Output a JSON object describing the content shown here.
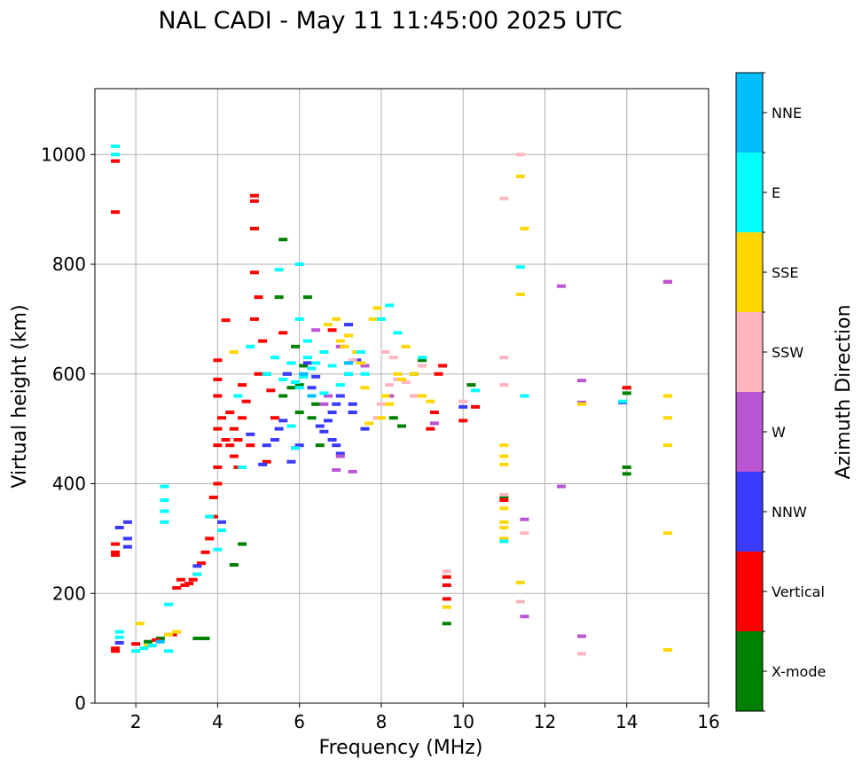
{
  "chart_data": {
    "type": "scatter",
    "title": "NAL CADI - May 11 11:45:00 2025 UTC",
    "xlabel": "Frequency (MHz)",
    "ylabel": "Virtual height (km)",
    "xlim": [
      1,
      16
    ],
    "ylim": [
      0,
      1120
    ],
    "xticks": [
      2,
      4,
      6,
      8,
      10,
      12,
      14,
      16
    ],
    "yticks": [
      0,
      200,
      400,
      600,
      800,
      1000
    ],
    "grid": true,
    "colorbar": {
      "label": "Azimuth Direction",
      "categories": [
        "X-mode",
        "Vertical",
        "NNW",
        "W",
        "SSW",
        "SSE",
        "E",
        "NNE"
      ],
      "colors": [
        "#008000",
        "#ff0000",
        "#3a3aff",
        "#ba55d3",
        "#ffb6c1",
        "#ffd700",
        "#00ffff",
        "#00bfff"
      ]
    },
    "series": [
      {
        "name": "X-mode",
        "points": [
          [
            2.3,
            112
          ],
          [
            2.6,
            118
          ],
          [
            3.5,
            118
          ],
          [
            3.7,
            118
          ],
          [
            4.4,
            252
          ],
          [
            4.6,
            290
          ],
          [
            5.6,
            560
          ],
          [
            5.7,
            600
          ],
          [
            5.8,
            575
          ],
          [
            6.0,
            580
          ],
          [
            6.1,
            615
          ],
          [
            6.3,
            520
          ],
          [
            6.4,
            545
          ],
          [
            6.5,
            470
          ],
          [
            6.2,
            740
          ],
          [
            5.5,
            740
          ],
          [
            5.6,
            845
          ],
          [
            7.3,
            530
          ],
          [
            8.3,
            520
          ],
          [
            8.5,
            505
          ],
          [
            8.8,
            600
          ],
          [
            9.0,
            625
          ],
          [
            9.6,
            145
          ],
          [
            10.2,
            580
          ],
          [
            11.0,
            375
          ],
          [
            14.0,
            575
          ],
          [
            14.0,
            565
          ],
          [
            14.0,
            430
          ],
          [
            14.0,
            418
          ],
          [
            5.2,
            600
          ],
          [
            5.9,
            650
          ],
          [
            6.0,
            530
          ]
        ]
      },
      {
        "name": "Vertical",
        "points": [
          [
            1.5,
            988
          ],
          [
            1.5,
            895
          ],
          [
            1.5,
            290
          ],
          [
            1.5,
            275
          ],
          [
            1.5,
            270
          ],
          [
            1.5,
            100
          ],
          [
            1.5,
            95
          ],
          [
            2.0,
            108
          ],
          [
            2.5,
            115
          ],
          [
            2.9,
            125
          ],
          [
            3.0,
            210
          ],
          [
            3.1,
            225
          ],
          [
            3.2,
            215
          ],
          [
            3.3,
            218
          ],
          [
            3.4,
            225
          ],
          [
            3.5,
            235
          ],
          [
            3.6,
            255
          ],
          [
            3.7,
            275
          ],
          [
            3.8,
            300
          ],
          [
            3.9,
            340
          ],
          [
            3.9,
            375
          ],
          [
            4.0,
            400
          ],
          [
            4.0,
            430
          ],
          [
            4.0,
            470
          ],
          [
            4.0,
            500
          ],
          [
            4.0,
            560
          ],
          [
            4.0,
            590
          ],
          [
            4.0,
            625
          ],
          [
            4.1,
            520
          ],
          [
            4.2,
            480
          ],
          [
            4.3,
            470
          ],
          [
            4.4,
            500
          ],
          [
            4.4,
            450
          ],
          [
            4.5,
            430
          ],
          [
            4.5,
            480
          ],
          [
            4.6,
            520
          ],
          [
            4.7,
            550
          ],
          [
            4.8,
            470
          ],
          [
            4.9,
            700
          ],
          [
            4.9,
            785
          ],
          [
            4.9,
            865
          ],
          [
            4.9,
            915
          ],
          [
            4.9,
            925
          ],
          [
            5.0,
            740
          ],
          [
            5.0,
            600
          ],
          [
            5.1,
            660
          ],
          [
            5.2,
            440
          ],
          [
            5.3,
            570
          ],
          [
            5.4,
            520
          ],
          [
            4.3,
            530
          ],
          [
            4.6,
            580
          ],
          [
            4.2,
            698
          ],
          [
            5.6,
            675
          ],
          [
            6.8,
            680
          ],
          [
            9.2,
            500
          ],
          [
            9.3,
            530
          ],
          [
            9.4,
            600
          ],
          [
            9.5,
            615
          ],
          [
            9.6,
            230
          ],
          [
            9.6,
            215
          ],
          [
            9.6,
            190
          ],
          [
            10.0,
            515
          ],
          [
            10.3,
            540
          ],
          [
            11.0,
            370
          ],
          [
            14.0,
            575
          ],
          [
            15.0,
            768
          ]
        ]
      },
      {
        "name": "NNW",
        "points": [
          [
            1.8,
            330
          ],
          [
            1.8,
            300
          ],
          [
            1.8,
            285
          ],
          [
            1.6,
            320
          ],
          [
            1.6,
            110
          ],
          [
            4.8,
            490
          ],
          [
            5.1,
            435
          ],
          [
            5.2,
            470
          ],
          [
            5.4,
            480
          ],
          [
            5.5,
            500
          ],
          [
            5.6,
            515
          ],
          [
            5.8,
            440
          ],
          [
            5.9,
            465
          ],
          [
            6.0,
            470
          ],
          [
            6.3,
            575
          ],
          [
            6.4,
            595
          ],
          [
            6.5,
            505
          ],
          [
            6.6,
            495
          ],
          [
            6.7,
            515
          ],
          [
            6.8,
            530
          ],
          [
            6.9,
            545
          ],
          [
            7.0,
            560
          ],
          [
            7.2,
            600
          ],
          [
            7.3,
            545
          ],
          [
            7.4,
            625
          ],
          [
            6.8,
            480
          ],
          [
            6.9,
            470
          ],
          [
            7.0,
            455
          ],
          [
            7.3,
            530
          ],
          [
            7.6,
            500
          ],
          [
            10.0,
            540
          ],
          [
            3.5,
            250
          ],
          [
            4.1,
            330
          ],
          [
            5.7,
            600
          ],
          [
            6.2,
            620
          ],
          [
            7.2,
            690
          ],
          [
            13.9,
            548
          ]
        ]
      },
      {
        "name": "W",
        "points": [
          [
            7.0,
            450
          ],
          [
            7.3,
            422
          ],
          [
            6.9,
            425
          ],
          [
            6.6,
            545
          ],
          [
            6.7,
            560
          ],
          [
            6.4,
            680
          ],
          [
            7.0,
            650
          ],
          [
            7.6,
            615
          ],
          [
            8.2,
            560
          ],
          [
            11.5,
            335
          ],
          [
            12.4,
            760
          ],
          [
            12.4,
            395
          ],
          [
            12.9,
            588
          ],
          [
            12.9,
            548
          ],
          [
            12.9,
            122
          ],
          [
            15.0,
            768
          ],
          [
            11.5,
            158
          ],
          [
            9.3,
            510
          ]
        ]
      },
      {
        "name": "SSW",
        "points": [
          [
            7.9,
            520
          ],
          [
            8.0,
            545
          ],
          [
            8.2,
            580
          ],
          [
            8.4,
            590
          ],
          [
            8.6,
            585
          ],
          [
            8.8,
            560
          ],
          [
            9.0,
            615
          ],
          [
            10.0,
            550
          ],
          [
            11.0,
            920
          ],
          [
            11.0,
            630
          ],
          [
            11.0,
            580
          ],
          [
            11.0,
            380
          ],
          [
            11.4,
            1000
          ],
          [
            11.4,
            185
          ],
          [
            11.5,
            310
          ],
          [
            12.9,
            90
          ],
          [
            9.6,
            240
          ],
          [
            8.3,
            630
          ],
          [
            8.1,
            640
          ],
          [
            7.3,
            625
          ]
        ]
      },
      {
        "name": "SSE",
        "points": [
          [
            2.1,
            145
          ],
          [
            2.3,
            105
          ],
          [
            2.8,
            125
          ],
          [
            3.0,
            130
          ],
          [
            4.4,
            640
          ],
          [
            6.7,
            690
          ],
          [
            6.9,
            700
          ],
          [
            7.0,
            660
          ],
          [
            7.1,
            650
          ],
          [
            7.2,
            670
          ],
          [
            7.4,
            640
          ],
          [
            7.5,
            620
          ],
          [
            7.6,
            575
          ],
          [
            7.7,
            510
          ],
          [
            7.8,
            700
          ],
          [
            7.9,
            720
          ],
          [
            8.0,
            520
          ],
          [
            8.1,
            560
          ],
          [
            8.2,
            545
          ],
          [
            8.4,
            600
          ],
          [
            8.5,
            590
          ],
          [
            8.6,
            650
          ],
          [
            8.8,
            600
          ],
          [
            9.0,
            560
          ],
          [
            9.2,
            550
          ],
          [
            11.0,
            470
          ],
          [
            11.0,
            450
          ],
          [
            11.0,
            435
          ],
          [
            11.0,
            355
          ],
          [
            11.0,
            330
          ],
          [
            11.0,
            320
          ],
          [
            11.0,
            300
          ],
          [
            11.4,
            960
          ],
          [
            11.4,
            745
          ],
          [
            11.5,
            865
          ],
          [
            11.4,
            220
          ],
          [
            12.9,
            545
          ],
          [
            15.0,
            560
          ],
          [
            15.0,
            520
          ],
          [
            15.0,
            470
          ],
          [
            15.0,
            310
          ],
          [
            15.0,
            97
          ],
          [
            9.6,
            175
          ]
        ]
      },
      {
        "name": "E",
        "points": [
          [
            1.5,
            1015
          ],
          [
            1.5,
            1000
          ],
          [
            1.6,
            130
          ],
          [
            1.6,
            120
          ],
          [
            2.0,
            95
          ],
          [
            2.2,
            100
          ],
          [
            2.4,
            105
          ],
          [
            2.7,
            395
          ],
          [
            2.7,
            370
          ],
          [
            2.7,
            350
          ],
          [
            2.7,
            330
          ],
          [
            2.8,
            180
          ],
          [
            2.8,
            95
          ],
          [
            3.5,
            235
          ],
          [
            3.8,
            340
          ],
          [
            4.0,
            280
          ],
          [
            4.1,
            315
          ],
          [
            4.5,
            560
          ],
          [
            4.6,
            430
          ],
          [
            4.8,
            650
          ],
          [
            5.2,
            600
          ],
          [
            5.4,
            630
          ],
          [
            5.6,
            590
          ],
          [
            5.8,
            620
          ],
          [
            5.9,
            585
          ],
          [
            6.0,
            575
          ],
          [
            6.0,
            700
          ],
          [
            6.0,
            800
          ],
          [
            5.8,
            505
          ],
          [
            5.9,
            465
          ],
          [
            6.1,
            595
          ],
          [
            6.2,
            630
          ],
          [
            6.3,
            610
          ],
          [
            6.4,
            620
          ],
          [
            6.6,
            640
          ],
          [
            6.8,
            615
          ],
          [
            7.0,
            580
          ],
          [
            7.2,
            600
          ],
          [
            7.5,
            640
          ],
          [
            7.6,
            600
          ],
          [
            8.0,
            700
          ],
          [
            8.2,
            725
          ],
          [
            8.4,
            675
          ],
          [
            9.0,
            630
          ],
          [
            10.3,
            570
          ],
          [
            11.0,
            295
          ],
          [
            11.4,
            795
          ],
          [
            11.5,
            560
          ],
          [
            13.9,
            550
          ],
          [
            5.5,
            790
          ],
          [
            6.2,
            660
          ],
          [
            6.6,
            565
          ]
        ]
      },
      {
        "name": "NNE",
        "points": [
          [
            2.6,
            112
          ],
          [
            6.1,
            600
          ],
          [
            6.3,
            560
          ],
          [
            7.2,
            620
          ]
        ]
      }
    ]
  }
}
